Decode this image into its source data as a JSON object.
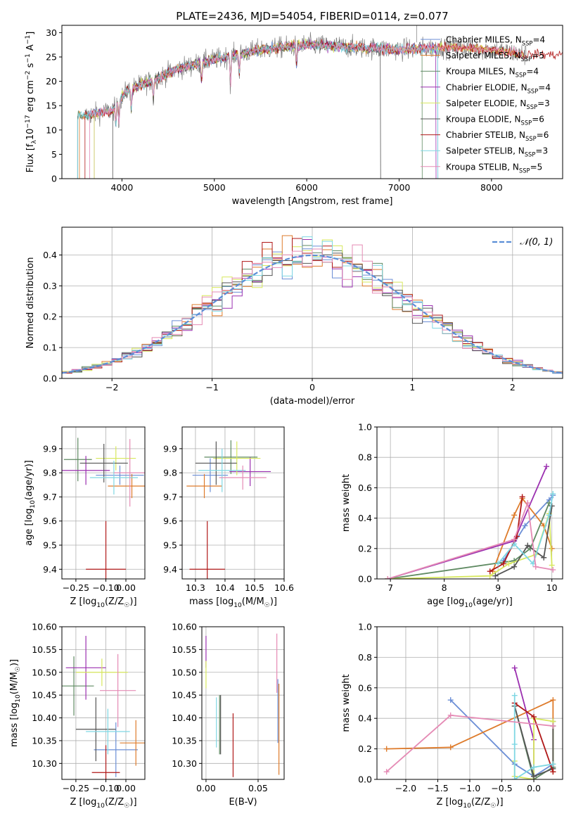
{
  "colors": [
    "#6b8ed6",
    "#de7b2b",
    "#5f8a62",
    "#9b30b0",
    "#d7e85d",
    "#555555",
    "#b01818",
    "#7fd7e3",
    "#e58bb5"
  ],
  "legend_names": [
    "Chabrier MILES, N<sub>SSP</sub>=4",
    "Salpeter MILES, N<sub>SSP</sub>=5",
    "Kroupa MILES, N<sub>SSP</sub>=4",
    "Chabrier ELODIE, N<sub>SSP</sub>=4",
    "Salpeter ELODIE, N<sub>SSP</sub>=3",
    "Kroupa ELODIE, N<sub>SSP</sub>=6",
    "Chabrier STELIB, N<sub>SSP</sub>=6",
    "Salpeter STELIB, N<sub>SSP</sub>=3",
    "Kroupa STELIB, N<sub>SSP</sub>=5"
  ],
  "chart_data": [
    {
      "type": "line",
      "title": "PLATE=2436, MJD=54054, FIBERID=0114, z=0.077",
      "xlabel": "wavelength [Angstrom, rest frame]",
      "ylabel": "Flux [f<sub>λ</sub>10<sup>−17</sup> erg cm<sup>−2</sup> s<sup>−1</sup> A<sup>−1</sup>]",
      "xlim": [
        3350,
        8770
      ],
      "ylim": [
        0,
        31.5
      ],
      "xticks": [
        4000,
        5000,
        6000,
        7000,
        8000
      ],
      "yticks": [
        0,
        5,
        10,
        15,
        20,
        25,
        30
      ],
      "legend_placement": "upper right",
      "continuum": [
        [
          3600,
          13
        ],
        [
          3900,
          14
        ],
        [
          4050,
          18
        ],
        [
          4300,
          20
        ],
        [
          4600,
          22.5
        ],
        [
          5000,
          24.5
        ],
        [
          5500,
          26.5
        ],
        [
          6000,
          27.5
        ],
        [
          6500,
          27
        ],
        [
          7000,
          26.5
        ],
        [
          7500,
          27
        ],
        [
          8000,
          26.5
        ],
        [
          8350,
          25.5
        ]
      ],
      "model_ranges": [
        [
          3520,
          7420
        ],
        [
          3540,
          8300
        ],
        [
          3520,
          7250
        ],
        [
          3700,
          7400
        ],
        [
          3700,
          8350
        ],
        [
          3900,
          6800
        ],
        [
          3600,
          8770
        ],
        [
          3520,
          7420
        ],
        [
          3650,
          8350
        ]
      ]
    },
    {
      "type": "line",
      "xlabel": "(data-model)/error",
      "ylabel": "Normed distribution",
      "xlim": [
        -2.5,
        2.5
      ],
      "ylim": [
        0,
        0.49
      ],
      "xticks": [
        -2,
        -1,
        0,
        1,
        2
      ],
      "yticks": [
        0.0,
        0.1,
        0.2,
        0.3,
        0.4
      ],
      "grid": true,
      "curve_label": "𝒩(0, 1)",
      "legend_placement": "upper right",
      "bin_width": 0.1
    },
    {
      "type": "scatter",
      "xlabel": "Z [log<sub>10</sub>(Z/Z<sub>☉</sub>)]",
      "ylabel": "age  [log<sub>10</sub>(age/yr)]",
      "xlim": [
        -0.32,
        0.095
      ],
      "ylim": [
        9.36,
        9.99
      ],
      "xticks": [
        -0.25,
        -0.1,
        0.0
      ],
      "xticklabels": [
        "−0.25",
        "−0.10",
        "0.00"
      ],
      "yticks": [
        9.4,
        9.5,
        9.6,
        9.7,
        9.8,
        9.9
      ],
      "grid": true,
      "points": [
        {
          "x": -0.03,
          "y": 9.79,
          "xerr": 0.12,
          "yerr": 0.04
        },
        {
          "x": 0.03,
          "y": 9.745,
          "xerr": 0.12,
          "yerr": 0.05
        },
        {
          "x": -0.24,
          "y": 9.855,
          "xerr": 0.07,
          "yerr": 0.09
        },
        {
          "x": -0.2,
          "y": 9.81,
          "xerr": 0.12,
          "yerr": 0.06
        },
        {
          "x": -0.05,
          "y": 9.86,
          "xerr": 0.1,
          "yerr": 0.05
        },
        {
          "x": -0.11,
          "y": 9.84,
          "xerr": 0.12,
          "yerr": 0.08
        },
        {
          "x": -0.1,
          "y": 9.4,
          "xerr": 0.1,
          "yerr": 0.2
        },
        {
          "x": -0.06,
          "y": 9.78,
          "xerr": 0.12,
          "yerr": 0.07
        },
        {
          "x": 0.02,
          "y": 9.8,
          "xerr": 0.08,
          "yerr": 0.14
        }
      ]
    },
    {
      "type": "scatter",
      "xlabel": "mass [log<sub>10</sub>(M/M<sub>☉</sub>)]",
      "ylabel": "",
      "xlim": [
        10.255,
        10.6
      ],
      "ylim": [
        9.36,
        9.99
      ],
      "xticks": [
        10.3,
        10.4,
        10.5,
        10.6
      ],
      "yticks": [
        9.4,
        9.5,
        9.6,
        9.7,
        9.8,
        9.9
      ],
      "grid": true,
      "points": [
        {
          "x": 10.35,
          "y": 9.79,
          "xerr": 0.06,
          "yerr": 0.07
        },
        {
          "x": 10.33,
          "y": 9.745,
          "xerr": 0.06,
          "yerr": 0.05
        },
        {
          "x": 10.42,
          "y": 9.865,
          "xerr": 0.09,
          "yerr": 0.07
        },
        {
          "x": 10.485,
          "y": 9.805,
          "xerr": 0.07,
          "yerr": 0.06
        },
        {
          "x": 10.44,
          "y": 9.86,
          "xerr": 0.08,
          "yerr": 0.07
        },
        {
          "x": 10.37,
          "y": 9.84,
          "xerr": 0.07,
          "yerr": 0.09
        },
        {
          "x": 10.34,
          "y": 9.4,
          "xerr": 0.06,
          "yerr": 0.2
        },
        {
          "x": 10.39,
          "y": 9.81,
          "xerr": 0.08,
          "yerr": 0.09
        },
        {
          "x": 10.46,
          "y": 9.78,
          "xerr": 0.08,
          "yerr": 0.05
        }
      ]
    },
    {
      "type": "line",
      "xlabel": "age  [log<sub>10</sub>(age/yr)]",
      "ylabel": "mass weight",
      "xlim": [
        6.75,
        10.2
      ],
      "ylim": [
        0,
        1.0
      ],
      "xticks": [
        7,
        8,
        9,
        10
      ],
      "yticks": [
        0.0,
        0.2,
        0.4,
        0.6,
        0.8,
        1.0
      ],
      "grid": true,
      "series": [
        {
          "x": [
            9.1,
            9.5,
            9.95,
            10.02
          ],
          "y": [
            0.12,
            0.35,
            0.52,
            0.55
          ]
        },
        {
          "x": [
            8.9,
            9.3,
            9.45,
            9.85,
            10.0
          ],
          "y": [
            0.05,
            0.42,
            0.53,
            0.35,
            0.2
          ]
        },
        {
          "x": [
            6.95,
            9.3,
            9.6,
            9.95
          ],
          "y": [
            0.0,
            0.12,
            0.2,
            0.5
          ]
        },
        {
          "x": [
            6.95,
            9.3,
            9.9
          ],
          "y": [
            0.0,
            0.25,
            0.74
          ]
        },
        {
          "x": [
            6.95,
            8.85,
            9.2,
            9.7,
            9.95,
            10.0
          ],
          "y": [
            0.0,
            0.02,
            0.1,
            0.16,
            0.43,
            0.09
          ]
        },
        {
          "x": [
            8.95,
            9.3,
            9.55,
            9.85,
            10.0
          ],
          "y": [
            0.02,
            0.08,
            0.22,
            0.14,
            0.48
          ]
        },
        {
          "x": [
            8.85,
            9.1,
            9.35,
            9.45
          ],
          "y": [
            0.05,
            0.1,
            0.28,
            0.54
          ]
        },
        {
          "x": [
            9.0,
            9.3,
            9.65,
            9.95,
            10.02
          ],
          "y": [
            0.1,
            0.23,
            0.1,
            0.42,
            0.56
          ]
        },
        {
          "x": [
            6.95,
            9.3,
            9.55,
            9.7,
            10.02
          ],
          "y": [
            0.0,
            0.26,
            0.5,
            0.08,
            0.06
          ]
        }
      ]
    },
    {
      "type": "scatter",
      "xlabel": "Z [log<sub>10</sub>(Z/Z<sub>☉</sub>)]",
      "ylabel": "mass [log<sub>10</sub>(M/M<sub>☉</sub>)]",
      "xlim": [
        -0.32,
        0.095
      ],
      "ylim": [
        10.265,
        10.6
      ],
      "xticks": [
        -0.25,
        -0.1,
        0.0
      ],
      "xticklabels": [
        "−0.25",
        "−0.10",
        "0.00"
      ],
      "yticks": [
        10.3,
        10.35,
        10.4,
        10.45,
        10.5,
        10.55,
        10.6
      ],
      "grid": true,
      "points": [
        {
          "x": -0.05,
          "y": 10.33,
          "xerr": 0.11,
          "yerr": 0.06
        },
        {
          "x": 0.05,
          "y": 10.345,
          "xerr": 0.08,
          "yerr": 0.05
        },
        {
          "x": -0.26,
          "y": 10.47,
          "xerr": 0.1,
          "yerr": 0.065
        },
        {
          "x": -0.2,
          "y": 10.51,
          "xerr": 0.1,
          "yerr": 0.07
        },
        {
          "x": -0.12,
          "y": 10.5,
          "xerr": 0.13,
          "yerr": 0.03
        },
        {
          "x": -0.15,
          "y": 10.375,
          "xerr": 0.1,
          "yerr": 0.07
        },
        {
          "x": -0.1,
          "y": 10.28,
          "xerr": 0.07,
          "yerr": 0.06
        },
        {
          "x": -0.09,
          "y": 10.37,
          "xerr": 0.11,
          "yerr": 0.05
        },
        {
          "x": -0.04,
          "y": 10.46,
          "xerr": 0.09,
          "yerr": 0.08
        }
      ]
    },
    {
      "type": "scatter",
      "xlabel": "E(B-V)",
      "ylabel": "",
      "xlim": [
        -0.004,
        0.075
      ],
      "ylim": [
        10.265,
        10.6
      ],
      "xticks": [
        0.0,
        0.05
      ],
      "xticklabels": [
        "0.00",
        "0.05"
      ],
      "yticks": [
        10.3,
        10.35,
        10.4,
        10.45,
        10.5,
        10.55,
        10.6
      ],
      "grid": true,
      "points": [
        {
          "x": 0.069,
          "y": 10.415,
          "yerr": 0.07
        },
        {
          "x": 0.07,
          "y": 10.375,
          "yerr": 0.1
        },
        {
          "x": 0.013,
          "y": 10.385,
          "yerr": 0.065
        },
        {
          "x": 0.0,
          "y": 10.545,
          "yerr": 0.035
        },
        {
          "x": 0.0,
          "y": 10.495,
          "yerr": 0.03
        },
        {
          "x": 0.014,
          "y": 10.385,
          "yerr": 0.065
        },
        {
          "x": 0.026,
          "y": 10.34,
          "yerr": 0.07
        },
        {
          "x": 0.01,
          "y": 10.39,
          "yerr": 0.055
        },
        {
          "x": 0.068,
          "y": 10.52,
          "yerr": 0.065
        }
      ]
    },
    {
      "type": "line",
      "xlabel": "Z [log<sub>10</sub>(Z/Z<sub>☉</sub>)]",
      "ylabel": "mass weight",
      "xlim": [
        -2.45,
        0.45
      ],
      "ylim": [
        0,
        1.0
      ],
      "xticks": [
        -2.0,
        -1.5,
        -1.0,
        -0.5,
        0.0
      ],
      "xticklabels": [
        "−2.0",
        "−1.5",
        "−1.0",
        "−0.5",
        "0.0"
      ],
      "yticks": [
        0.0,
        0.2,
        0.4,
        0.6,
        0.8,
        1.0
      ],
      "grid": true,
      "series": [
        {
          "x": [
            -1.3,
            -0.3,
            0.0,
            0.3
          ],
          "y": [
            0.52,
            0.1,
            0.02,
            0.1
          ]
        },
        {
          "x": [
            -2.3,
            -1.3,
            0.3,
            0.3
          ],
          "y": [
            0.2,
            0.21,
            0.52,
            0.05
          ]
        },
        {
          "x": [
            -0.3,
            0.0,
            0.3,
            0.3
          ],
          "y": [
            0.48,
            0.0,
            0.08,
            0.38
          ]
        },
        {
          "x": [
            -0.3,
            0.0,
            0.0
          ],
          "y": [
            0.73,
            0.26,
            0.02
          ]
        },
        {
          "x": [
            -0.3,
            -0.3,
            0.0,
            0.0,
            0.3,
            0.3
          ],
          "y": [
            0.12,
            0.02,
            0.0,
            0.4,
            0.38,
            0.1
          ]
        },
        {
          "x": [
            -0.3,
            0.0,
            0.3,
            0.3
          ],
          "y": [
            0.48,
            0.02,
            0.07,
            0.35
          ]
        },
        {
          "x": [
            -0.3,
            0.0,
            0.3
          ],
          "y": [
            0.5,
            0.41,
            0.05
          ]
        },
        {
          "x": [
            -0.3,
            -0.3,
            -0.3,
            0.0,
            0.3
          ],
          "y": [
            0.55,
            0.23,
            0.0,
            0.08,
            0.1
          ]
        },
        {
          "x": [
            -2.3,
            -1.3,
            0.3
          ],
          "y": [
            0.05,
            0.42,
            0.35
          ]
        }
      ]
    }
  ]
}
